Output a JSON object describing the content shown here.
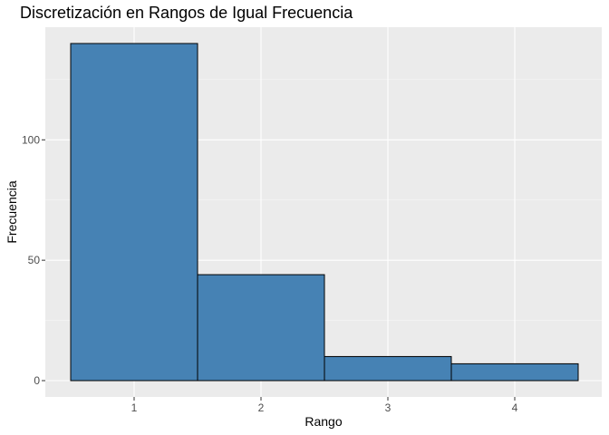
{
  "chart_data": {
    "type": "bar",
    "title": "Discretización en Rangos de Igual Frecuencia",
    "xlabel": "Rango",
    "ylabel": "Frecuencia",
    "categories": [
      "1",
      "2",
      "3",
      "4"
    ],
    "values": [
      140,
      44,
      10,
      7
    ],
    "ylim": [
      0,
      140
    ],
    "yticks": [
      0,
      50,
      100
    ],
    "grid": true,
    "legend": "none",
    "colors": {
      "bar_fill": "#4682B4",
      "bar_stroke": "#000000",
      "panel_bg": "#EBEBEB",
      "grid_major": "#FFFFFF"
    }
  }
}
